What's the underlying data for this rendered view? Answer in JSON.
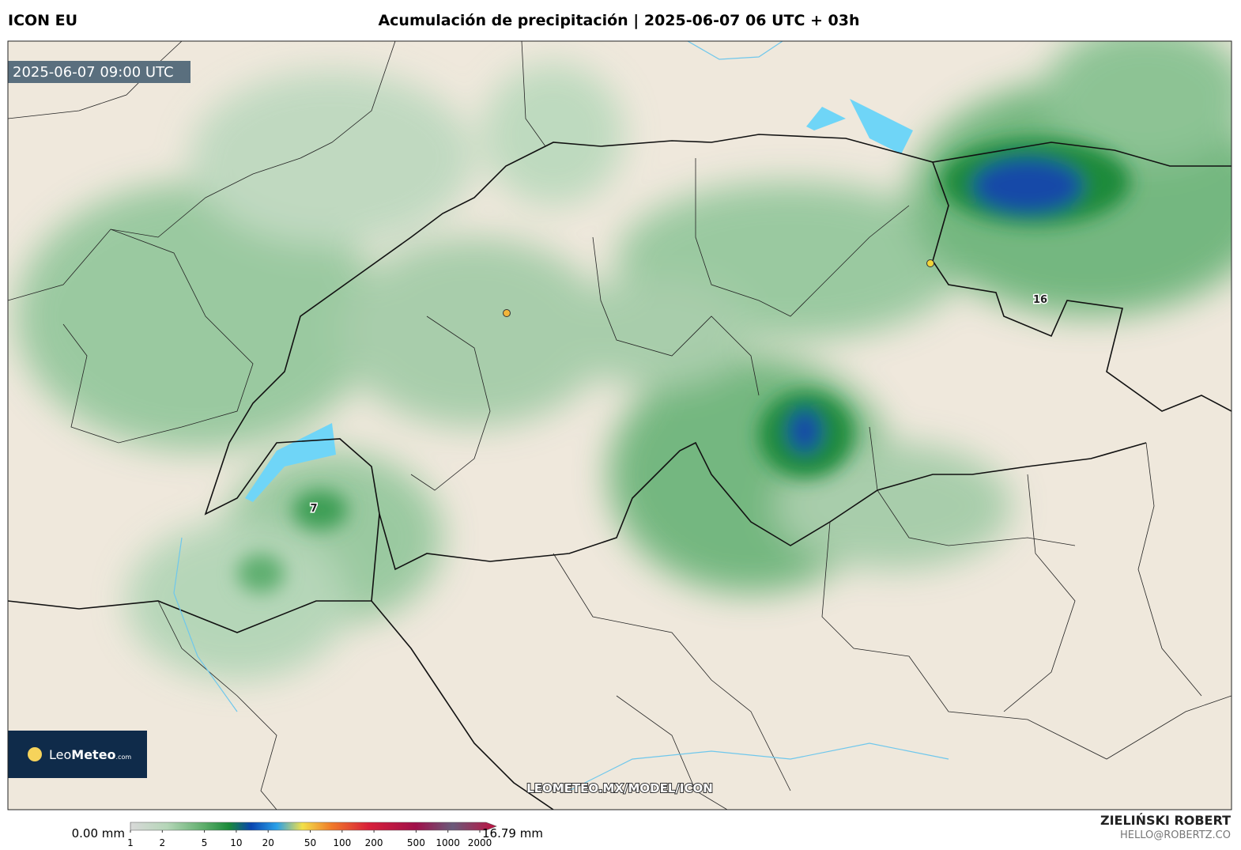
{
  "header": {
    "model": "ICON EU",
    "title": "Acumulación de precipitación | 2025-06-07 06 UTC + 03h"
  },
  "map": {
    "valid_time": "2025-06-07 09:00 UTC",
    "labels": [
      "16",
      "7"
    ],
    "watermark": "LEOMETEO.MX/MODEL/ICON",
    "logo": {
      "brand_light": "Leo",
      "brand_bold": "Meteo",
      "domain": ".com"
    }
  },
  "colorbar": {
    "min_label": "0.00 mm",
    "max_label": "16.79 mm",
    "ticks": [
      1,
      2,
      5,
      10,
      20,
      50,
      100,
      200,
      500,
      1000,
      2000
    ]
  },
  "credit": {
    "author": "ZIELIŃSKI ROBERT",
    "email": "HELLO@ROBERTZ.CO"
  }
}
